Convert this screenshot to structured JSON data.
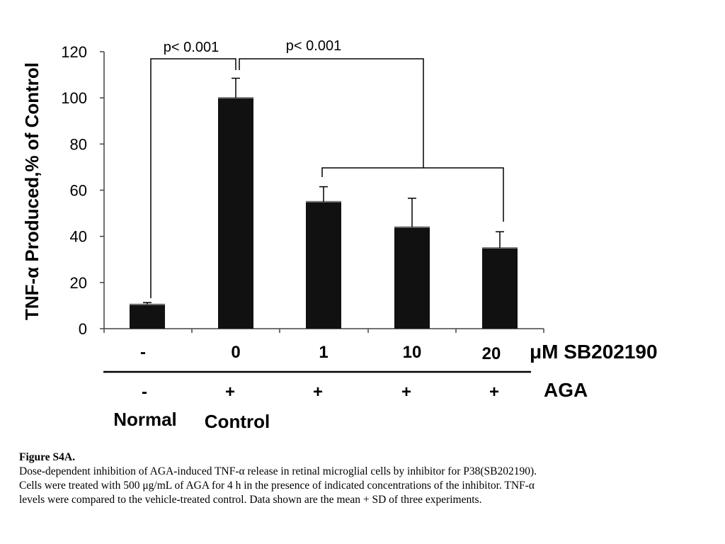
{
  "chart_data": {
    "type": "bar",
    "ylabel": "TNF-α Produced,% of Control",
    "ylim": [
      0,
      120
    ],
    "yticks": [
      0,
      20,
      40,
      60,
      80,
      100,
      120
    ],
    "grid": false,
    "categories": [
      "-",
      "0",
      "1",
      "10",
      "20"
    ],
    "values": [
      10.5,
      100,
      55,
      44,
      35
    ],
    "errors": [
      0.8,
      8.5,
      6.5,
      12.5,
      7
    ],
    "bar_color": "#111111",
    "dose_row_label": "μM SB202190",
    "aga_row": [
      "-",
      "+",
      "+",
      "+",
      "+"
    ],
    "aga_row_label": "AGA",
    "group_labels": [
      "Normal",
      "Control"
    ],
    "significance": [
      {
        "label": "p< 0.001"
      },
      {
        "label": "p< 0.001"
      }
    ]
  },
  "caption": {
    "title": "Figure S4A.",
    "line1": "Dose-dependent inhibition of AGA-induced TNF-α release in retinal microglial cells by inhibitor for P38(SB202190).",
    "line2": "Cells were treated with 500 μg/mL of AGA for 4 h in the presence of indicated concentrations of the inhibitor. TNF-α",
    "line3": "levels were compared to the vehicle-treated control.  Data shown are the mean + SD of three experiments."
  }
}
